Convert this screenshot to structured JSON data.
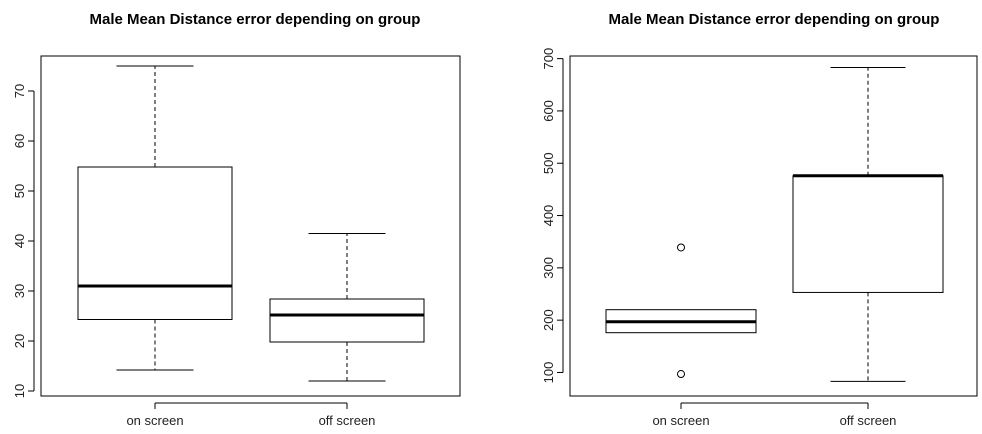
{
  "chart_data": [
    {
      "type": "box",
      "title": "Male Mean Distance error depending on group",
      "xlabel": "",
      "ylabel": "",
      "categories": [
        "on screen",
        "off screen"
      ],
      "ylim": [
        9,
        77
      ],
      "yticks": [
        10,
        20,
        30,
        40,
        50,
        60,
        70
      ],
      "boxes": [
        {
          "category": "on screen",
          "min": 14.2,
          "q1": 24.3,
          "median": 31.0,
          "q3": 54.8,
          "max": 75.0,
          "outliers": []
        },
        {
          "category": "off screen",
          "min": 12.0,
          "q1": 19.8,
          "median": 25.2,
          "q3": 28.4,
          "max": 41.5,
          "outliers": []
        }
      ],
      "grid": false
    },
    {
      "type": "box",
      "title": "Male Mean Distance error depending on group",
      "xlabel": "",
      "ylabel": "",
      "categories": [
        "on screen",
        "off screen"
      ],
      "ylim": [
        55,
        705
      ],
      "yticks": [
        100,
        200,
        300,
        400,
        500,
        600,
        700
      ],
      "boxes": [
        {
          "category": "on screen",
          "min": 176,
          "q1": 176,
          "median": 197,
          "q3": 220,
          "max": 220,
          "outliers": [
            339,
            97
          ]
        },
        {
          "category": "off screen",
          "min": 83,
          "q1": 253,
          "median": 476,
          "q3": 476,
          "max": 683,
          "outliers": []
        }
      ],
      "grid": false
    }
  ]
}
